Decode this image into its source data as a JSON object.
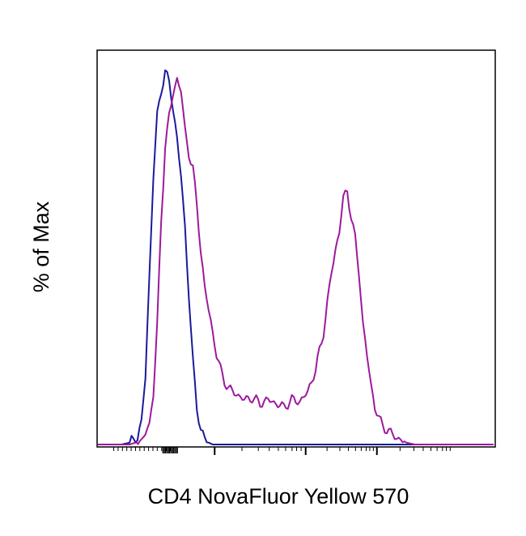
{
  "chart_data": {
    "type": "line",
    "xlabel": "CD4 NovaFluor Yellow 570",
    "ylabel": "% of Max",
    "x_scale": "biexponential",
    "x_tick_labels": [],
    "y_tick_labels": [],
    "ylim": [
      0,
      100
    ],
    "grid": false,
    "legend": "none",
    "colors": {
      "isotype": "#1a1a9c",
      "stained": "#9c1a9c",
      "axes": "#000000"
    },
    "series": [
      {
        "key": "isotype",
        "x": [
          0.0,
          0.06,
          0.08,
          0.1,
          0.11,
          0.12,
          0.13,
          0.14,
          0.15,
          0.16,
          0.17,
          0.18,
          0.19,
          0.2,
          0.21,
          0.22,
          0.23,
          0.24,
          0.25,
          0.26,
          0.27,
          0.28,
          0.29,
          0.3,
          1.0
        ],
        "y": [
          0,
          0,
          0.5,
          2,
          6,
          18,
          45,
          72,
          88,
          95,
          100,
          97,
          90,
          82,
          72,
          58,
          40,
          22,
          10,
          4,
          1.5,
          0.5,
          0,
          0,
          0
        ]
      },
      {
        "key": "stained",
        "x": [
          0.0,
          0.08,
          0.11,
          0.13,
          0.14,
          0.15,
          0.16,
          0.17,
          0.18,
          0.19,
          0.2,
          0.21,
          0.22,
          0.23,
          0.24,
          0.25,
          0.26,
          0.27,
          0.28,
          0.29,
          0.3,
          0.31,
          0.32,
          0.33,
          0.35,
          0.37,
          0.39,
          0.41,
          0.43,
          0.45,
          0.47,
          0.49,
          0.51,
          0.53,
          0.55,
          0.57,
          0.58,
          0.59,
          0.6,
          0.61,
          0.62,
          0.63,
          0.64,
          0.65,
          0.66,
          0.67,
          0.68,
          0.69,
          0.7,
          0.71,
          0.72,
          0.74,
          0.76,
          0.78,
          0.8,
          1.0
        ],
        "y": [
          0,
          0,
          1,
          5,
          14,
          32,
          60,
          80,
          88,
          94,
          98,
          95,
          84,
          78,
          74,
          64,
          52,
          42,
          36,
          30,
          24,
          20,
          17,
          15,
          13.5,
          12,
          12.5,
          11,
          12,
          11,
          10,
          12,
          11.5,
          14,
          20,
          30,
          38,
          46,
          52,
          57,
          66,
          68,
          61,
          55,
          46,
          32,
          24,
          16,
          10,
          7,
          5,
          3,
          1.5,
          0.5,
          0,
          0
        ]
      }
    ]
  }
}
